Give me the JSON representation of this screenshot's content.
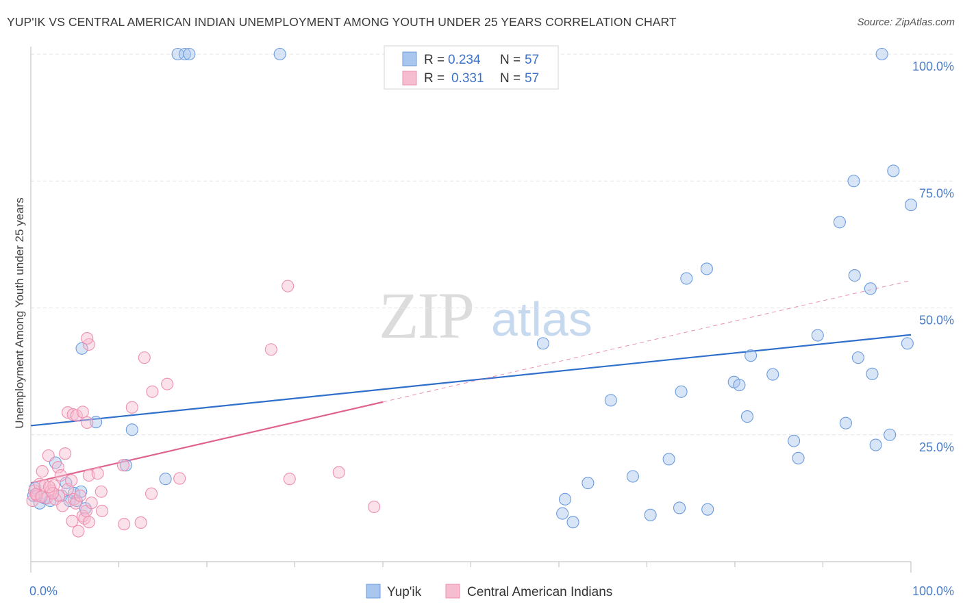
{
  "header": {
    "title": "YUP'IK VS CENTRAL AMERICAN INDIAN UNEMPLOYMENT AMONG YOUTH UNDER 25 YEARS CORRELATION CHART",
    "source": "Source: ZipAtlas.com"
  },
  "watermark": {
    "zip": "ZIP",
    "atlas": "atlas"
  },
  "chart_data": {
    "type": "scatter",
    "title": "YUP'IK VS CENTRAL AMERICAN INDIAN UNEMPLOYMENT AMONG YOUTH UNDER 25 YEARS CORRELATION CHART",
    "xlabel": "",
    "ylabel": "Unemployment Among Youth under 25 years",
    "xlim": [
      0,
      100
    ],
    "ylim": [
      0,
      100
    ],
    "x_tick_labels": {
      "min": "0.0%",
      "max": "100.0%"
    },
    "y_ticks": [
      {
        "value": 25,
        "label": "25.0%"
      },
      {
        "value": 50,
        "label": "50.0%"
      },
      {
        "value": 75,
        "label": "75.0%"
      },
      {
        "value": 100,
        "label": "100.0%"
      }
    ],
    "grid": true,
    "legend_position": "top-center",
    "legend": [
      {
        "r_label": "R =",
        "r_value": "0.234",
        "n_label": "N =",
        "n_value": "57"
      },
      {
        "r_label": "R =",
        "r_value": "0.331",
        "n_label": "N =",
        "n_value": "57"
      }
    ],
    "series": [
      {
        "name": "Yup'ik",
        "color": "#6b9bde",
        "fill": "#a9c6ee",
        "trend": {
          "x0": 0,
          "y0": 26.8,
          "x1": 100,
          "y1": 44.7,
          "solid_until": 100,
          "color": "#2e6fcc"
        },
        "points": [
          [
            0.3,
            13.0
          ],
          [
            0.5,
            14.5
          ],
          [
            1.0,
            11.5
          ],
          [
            1.6,
            12.5
          ],
          [
            2.2,
            12.0
          ],
          [
            2.8,
            19.5
          ],
          [
            3.5,
            13.0
          ],
          [
            4.0,
            15.5
          ],
          [
            4.4,
            12.0
          ],
          [
            4.9,
            13.5
          ],
          [
            5.2,
            12.0
          ],
          [
            5.7,
            13.8
          ],
          [
            6.2,
            10.5
          ],
          [
            5.8,
            42.0
          ],
          [
            7.4,
            27.5
          ],
          [
            10.8,
            19.0
          ],
          [
            11.5,
            26.0
          ],
          [
            15.3,
            16.3
          ],
          [
            16.7,
            100.0
          ],
          [
            17.5,
            100.0
          ],
          [
            18.0,
            100.0
          ],
          [
            28.3,
            100.0
          ],
          [
            58.2,
            43.0
          ],
          [
            60.7,
            12.3
          ],
          [
            60.4,
            9.5
          ],
          [
            61.6,
            7.8
          ],
          [
            63.3,
            15.5
          ],
          [
            65.9,
            31.8
          ],
          [
            68.4,
            16.8
          ],
          [
            70.4,
            9.2
          ],
          [
            72.5,
            20.2
          ],
          [
            73.7,
            10.6
          ],
          [
            73.9,
            33.5
          ],
          [
            74.5,
            55.8
          ],
          [
            76.8,
            57.7
          ],
          [
            76.9,
            10.3
          ],
          [
            79.9,
            35.4
          ],
          [
            80.5,
            34.8
          ],
          [
            81.4,
            28.6
          ],
          [
            81.8,
            40.6
          ],
          [
            84.3,
            36.9
          ],
          [
            86.7,
            23.8
          ],
          [
            87.2,
            20.4
          ],
          [
            89.4,
            44.6
          ],
          [
            91.9,
            66.9
          ],
          [
            92.6,
            27.3
          ],
          [
            93.5,
            75.0
          ],
          [
            93.6,
            56.4
          ],
          [
            94.0,
            40.2
          ],
          [
            95.4,
            53.8
          ],
          [
            95.6,
            37.0
          ],
          [
            96.0,
            23.0
          ],
          [
            96.7,
            100.0
          ],
          [
            97.6,
            25.0
          ],
          [
            98.0,
            77.0
          ],
          [
            99.6,
            43.0
          ],
          [
            100.0,
            70.3
          ]
        ]
      },
      {
        "name": "Central American Indians",
        "color": "#ee8fb0",
        "fill": "#f6bcd0",
        "trend": {
          "x0": 0,
          "y0": 15.5,
          "x1": 100,
          "y1": 55.4,
          "solid_until": 40,
          "color": "#e0628f"
        },
        "points": [
          [
            0.2,
            12.0
          ],
          [
            0.4,
            14.0
          ],
          [
            0.7,
            13.0
          ],
          [
            1.0,
            15.3
          ],
          [
            1.3,
            17.8
          ],
          [
            1.6,
            15.0
          ],
          [
            1.8,
            12.5
          ],
          [
            2.0,
            20.9
          ],
          [
            2.3,
            14.0
          ],
          [
            2.6,
            15.0
          ],
          [
            2.8,
            12.3
          ],
          [
            3.1,
            18.6
          ],
          [
            3.2,
            13.0
          ],
          [
            3.6,
            11.0
          ],
          [
            3.9,
            21.3
          ],
          [
            4.2,
            14.3
          ],
          [
            4.6,
            16.0
          ],
          [
            4.7,
            8.0
          ],
          [
            4.9,
            12.3
          ],
          [
            5.1,
            11.5
          ],
          [
            5.4,
            6.0
          ],
          [
            5.6,
            13.0
          ],
          [
            5.9,
            9.0
          ],
          [
            6.1,
            8.5
          ],
          [
            6.3,
            10.0
          ],
          [
            6.6,
            7.8
          ],
          [
            4.2,
            29.4
          ],
          [
            4.8,
            29.0
          ],
          [
            5.2,
            28.8
          ],
          [
            5.9,
            29.5
          ],
          [
            6.4,
            27.4
          ],
          [
            6.6,
            42.8
          ],
          [
            6.4,
            44.0
          ],
          [
            6.6,
            17.0
          ],
          [
            7.6,
            17.4
          ],
          [
            6.9,
            11.6
          ],
          [
            8.0,
            13.8
          ],
          [
            8.1,
            10.0
          ],
          [
            10.5,
            19.0
          ],
          [
            10.6,
            7.4
          ],
          [
            11.5,
            30.4
          ],
          [
            12.5,
            7.7
          ],
          [
            12.9,
            40.2
          ],
          [
            13.7,
            13.4
          ],
          [
            13.8,
            33.5
          ],
          [
            15.5,
            35.0
          ],
          [
            16.9,
            16.4
          ],
          [
            27.3,
            41.8
          ],
          [
            29.2,
            54.3
          ],
          [
            29.4,
            16.3
          ],
          [
            35.0,
            17.6
          ],
          [
            39.0,
            10.8
          ],
          [
            2.5,
            13.5
          ],
          [
            0.6,
            13.3
          ],
          [
            1.2,
            12.8
          ],
          [
            3.4,
            17.0
          ],
          [
            2.1,
            14.7
          ]
        ]
      }
    ]
  }
}
